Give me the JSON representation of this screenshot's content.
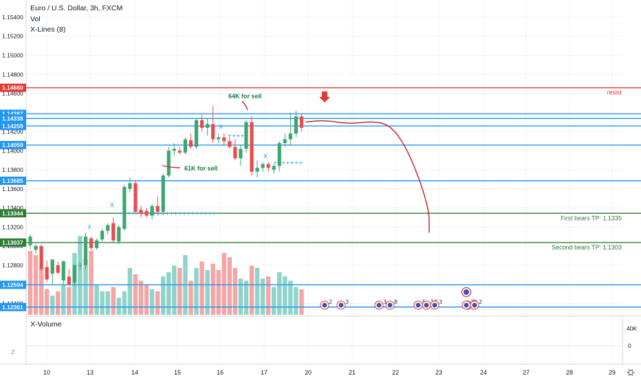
{
  "header": {
    "symbol_title": "Euro / U.S. Dollar, 3h, FXCM",
    "indicator_vol": "Vol",
    "indicator_xlines": "X-Lines (8)"
  },
  "subpane": {
    "title": "X-Volume",
    "ticks": [
      "40K",
      "0"
    ]
  },
  "footer": {
    "left_icon": "Z",
    "right_icon": "gear-icon"
  },
  "chart_data": {
    "type": "candlestick",
    "title": "Euro / U.S. Dollar, 3h, FXCM",
    "ylim": [
      1.1228,
      1.1558
    ],
    "y_ticks": [
      "1.15400",
      "1.15200",
      "1.15000",
      "1.14800",
      "1.14600",
      "1.14400",
      "1.14200",
      "1.14000",
      "1.13800",
      "1.13600",
      "1.13400",
      "1.13200",
      "1.13000",
      "1.12800",
      "1.12600",
      "1.12400"
    ],
    "x_ticks": [
      "10",
      "13",
      "14",
      "15",
      "16",
      "17",
      "20",
      "21",
      "22",
      "23",
      "24",
      "27",
      "28",
      "29"
    ],
    "candles": [
      {
        "o": 1.1301,
        "h": 1.1312,
        "l": 1.1297,
        "c": 1.131
      },
      {
        "o": 1.1296,
        "h": 1.1302,
        "l": 1.1292,
        "c": 1.13
      },
      {
        "o": 1.13,
        "h": 1.1302,
        "l": 1.1274,
        "c": 1.1276
      },
      {
        "o": 1.1278,
        "h": 1.1285,
        "l": 1.1262,
        "c": 1.1265
      },
      {
        "o": 1.1271,
        "h": 1.1286,
        "l": 1.126,
        "c": 1.1286
      },
      {
        "o": 1.128,
        "h": 1.1284,
        "l": 1.127,
        "c": 1.1272
      },
      {
        "o": 1.1264,
        "h": 1.1285,
        "l": 1.126,
        "c": 1.1284
      },
      {
        "o": 1.1268,
        "h": 1.1276,
        "l": 1.1258,
        "c": 1.126
      },
      {
        "o": 1.1262,
        "h": 1.1281,
        "l": 1.1258,
        "c": 1.128
      },
      {
        "o": 1.1279,
        "h": 1.1283,
        "l": 1.1275,
        "c": 1.128
      },
      {
        "o": 1.128,
        "h": 1.1314,
        "l": 1.1276,
        "c": 1.131
      },
      {
        "o": 1.1308,
        "h": 1.131,
        "l": 1.1296,
        "c": 1.1298
      },
      {
        "o": 1.1298,
        "h": 1.1308,
        "l": 1.1296,
        "c": 1.1306
      },
      {
        "o": 1.1307,
        "h": 1.1318,
        "l": 1.1305,
        "c": 1.1316
      },
      {
        "o": 1.1316,
        "h": 1.1324,
        "l": 1.1312,
        "c": 1.1322
      },
      {
        "o": 1.1324,
        "h": 1.133,
        "l": 1.1304,
        "c": 1.1306
      },
      {
        "o": 1.1305,
        "h": 1.1322,
        "l": 1.1302,
        "c": 1.132
      },
      {
        "o": 1.1318,
        "h": 1.1364,
        "l": 1.1316,
        "c": 1.1362
      },
      {
        "o": 1.136,
        "h": 1.1372,
        "l": 1.1356,
        "c": 1.1366
      },
      {
        "o": 1.1366,
        "h": 1.1369,
        "l": 1.1334,
        "c": 1.1336
      },
      {
        "o": 1.1338,
        "h": 1.1342,
        "l": 1.133,
        "c": 1.1334
      },
      {
        "o": 1.1337,
        "h": 1.134,
        "l": 1.133,
        "c": 1.1332
      },
      {
        "o": 1.1332,
        "h": 1.1344,
        "l": 1.1328,
        "c": 1.1342
      },
      {
        "o": 1.1342,
        "h": 1.1352,
        "l": 1.1332,
        "c": 1.1336
      },
      {
        "o": 1.1336,
        "h": 1.1376,
        "l": 1.1332,
        "c": 1.1374
      },
      {
        "o": 1.1374,
        "h": 1.1404,
        "l": 1.1372,
        "c": 1.14
      },
      {
        "o": 1.14,
        "h": 1.1408,
        "l": 1.1394,
        "c": 1.1402
      },
      {
        "o": 1.14,
        "h": 1.1404,
        "l": 1.1396,
        "c": 1.1398
      },
      {
        "o": 1.1398,
        "h": 1.1414,
        "l": 1.1396,
        "c": 1.1412
      },
      {
        "o": 1.1411,
        "h": 1.1418,
        "l": 1.1402,
        "c": 1.1404
      },
      {
        "o": 1.1404,
        "h": 1.1434,
        "l": 1.1402,
        "c": 1.1432
      },
      {
        "o": 1.1432,
        "h": 1.1438,
        "l": 1.142,
        "c": 1.1424
      },
      {
        "o": 1.1424,
        "h": 1.1434,
        "l": 1.1416,
        "c": 1.1428
      },
      {
        "o": 1.1428,
        "h": 1.1447,
        "l": 1.1408,
        "c": 1.1412
      },
      {
        "o": 1.1412,
        "h": 1.1418,
        "l": 1.1408,
        "c": 1.1414
      },
      {
        "o": 1.1414,
        "h": 1.1418,
        "l": 1.1406,
        "c": 1.141
      },
      {
        "o": 1.141,
        "h": 1.1414,
        "l": 1.1402,
        "c": 1.1404
      },
      {
        "o": 1.1404,
        "h": 1.1412,
        "l": 1.139,
        "c": 1.1392
      },
      {
        "o": 1.1392,
        "h": 1.1406,
        "l": 1.1384,
        "c": 1.1402
      },
      {
        "o": 1.1402,
        "h": 1.1432,
        "l": 1.1398,
        "c": 1.143
      },
      {
        "o": 1.143,
        "h": 1.1436,
        "l": 1.1374,
        "c": 1.1378
      },
      {
        "o": 1.1378,
        "h": 1.139,
        "l": 1.1372,
        "c": 1.1382
      },
      {
        "o": 1.1382,
        "h": 1.1388,
        "l": 1.1378,
        "c": 1.1386
      },
      {
        "o": 1.1386,
        "h": 1.1388,
        "l": 1.1378,
        "c": 1.1382
      },
      {
        "o": 1.138,
        "h": 1.1386,
        "l": 1.1376,
        "c": 1.1384
      },
      {
        "o": 1.1384,
        "h": 1.141,
        "l": 1.1378,
        "c": 1.1408
      },
      {
        "o": 1.1408,
        "h": 1.1418,
        "l": 1.1404,
        "c": 1.1412
      },
      {
        "o": 1.1412,
        "h": 1.144,
        "l": 1.1406,
        "c": 1.1418
      },
      {
        "o": 1.1418,
        "h": 1.1442,
        "l": 1.1414,
        "c": 1.1436
      },
      {
        "o": 1.1436,
        "h": 1.1438,
        "l": 1.142,
        "c": 1.1424
      }
    ],
    "volumes": [
      30,
      28,
      22,
      12,
      9,
      11,
      14,
      13,
      29,
      37,
      26,
      30,
      14,
      11,
      11,
      13,
      8,
      11,
      22,
      19,
      16,
      14,
      12,
      11,
      18,
      20,
      23,
      22,
      28,
      16,
      22,
      25,
      21,
      24,
      21,
      29,
      27,
      22,
      17,
      16,
      23,
      22,
      17,
      18,
      13,
      20,
      18,
      16,
      13,
      12
    ],
    "volume_colors": [
      1,
      1,
      1,
      1,
      0,
      1,
      0,
      1,
      0,
      0,
      0,
      1,
      0,
      0,
      0,
      1,
      0,
      0,
      0,
      1,
      1,
      1,
      0,
      1,
      0,
      0,
      0,
      1,
      0,
      1,
      0,
      1,
      0,
      1,
      1,
      1,
      1,
      1,
      0,
      0,
      1,
      0,
      0,
      1,
      0,
      0,
      0,
      0,
      0,
      1
    ],
    "price_levels": [
      {
        "value": 1.1466,
        "label": "1.14660",
        "color": "#e53935",
        "note": "resist"
      },
      {
        "value": 1.14387,
        "label": "1.14387",
        "color": "#2196f3",
        "note": ""
      },
      {
        "value": 1.14338,
        "label": "1.14338",
        "color": "#2196f3",
        "note": ""
      },
      {
        "value": 1.14259,
        "label": "1.14259",
        "color": "#2196f3",
        "note": ""
      },
      {
        "value": 1.14059,
        "label": "1.14059",
        "color": "#2196f3",
        "note": ""
      },
      {
        "value": 1.13685,
        "label": "1.13685",
        "color": "#2196f3",
        "note": ""
      },
      {
        "value": 1.13344,
        "label": "1.13344",
        "color": "#2e7d32",
        "note": "First bears TP: 1.1335"
      },
      {
        "value": 1.13037,
        "label": "1.13037",
        "color": "#2e7d32",
        "note": "Second bears TP: 1.1303"
      },
      {
        "value": 1.12594,
        "label": "1.12594",
        "color": "#2196f3",
        "note": ""
      },
      {
        "value": 1.12361,
        "label": "1.12361",
        "color": "#2196f3",
        "note": ""
      }
    ],
    "annotations": [
      {
        "text": "64K for sell",
        "x_index": 34,
        "price": 1.1451
      },
      {
        "text": "61K for sell",
        "x_index": 26,
        "price": 1.1367
      }
    ],
    "events": [
      {
        "day": "20",
        "labels": [
          "2",
          "3"
        ]
      },
      {
        "day": "21-22",
        "labels": [
          "3",
          "8"
        ]
      },
      {
        "day": "22-23",
        "labels": [
          "5",
          "18",
          "3"
        ]
      },
      {
        "day": "23-24",
        "labels": [
          "3",
          "30",
          "2"
        ]
      }
    ],
    "projection": [
      [
        1.143,
        0
      ],
      [
        1.1432,
        0.15
      ],
      [
        1.1428,
        0.35
      ],
      [
        1.1431,
        0.55
      ],
      [
        1.1426,
        0.7
      ],
      [
        1.1395,
        0.85
      ],
      [
        1.134,
        1.0
      ],
      [
        1.1314,
        1.0
      ]
    ],
    "subpane_ylim": [
      0,
      40000
    ]
  }
}
